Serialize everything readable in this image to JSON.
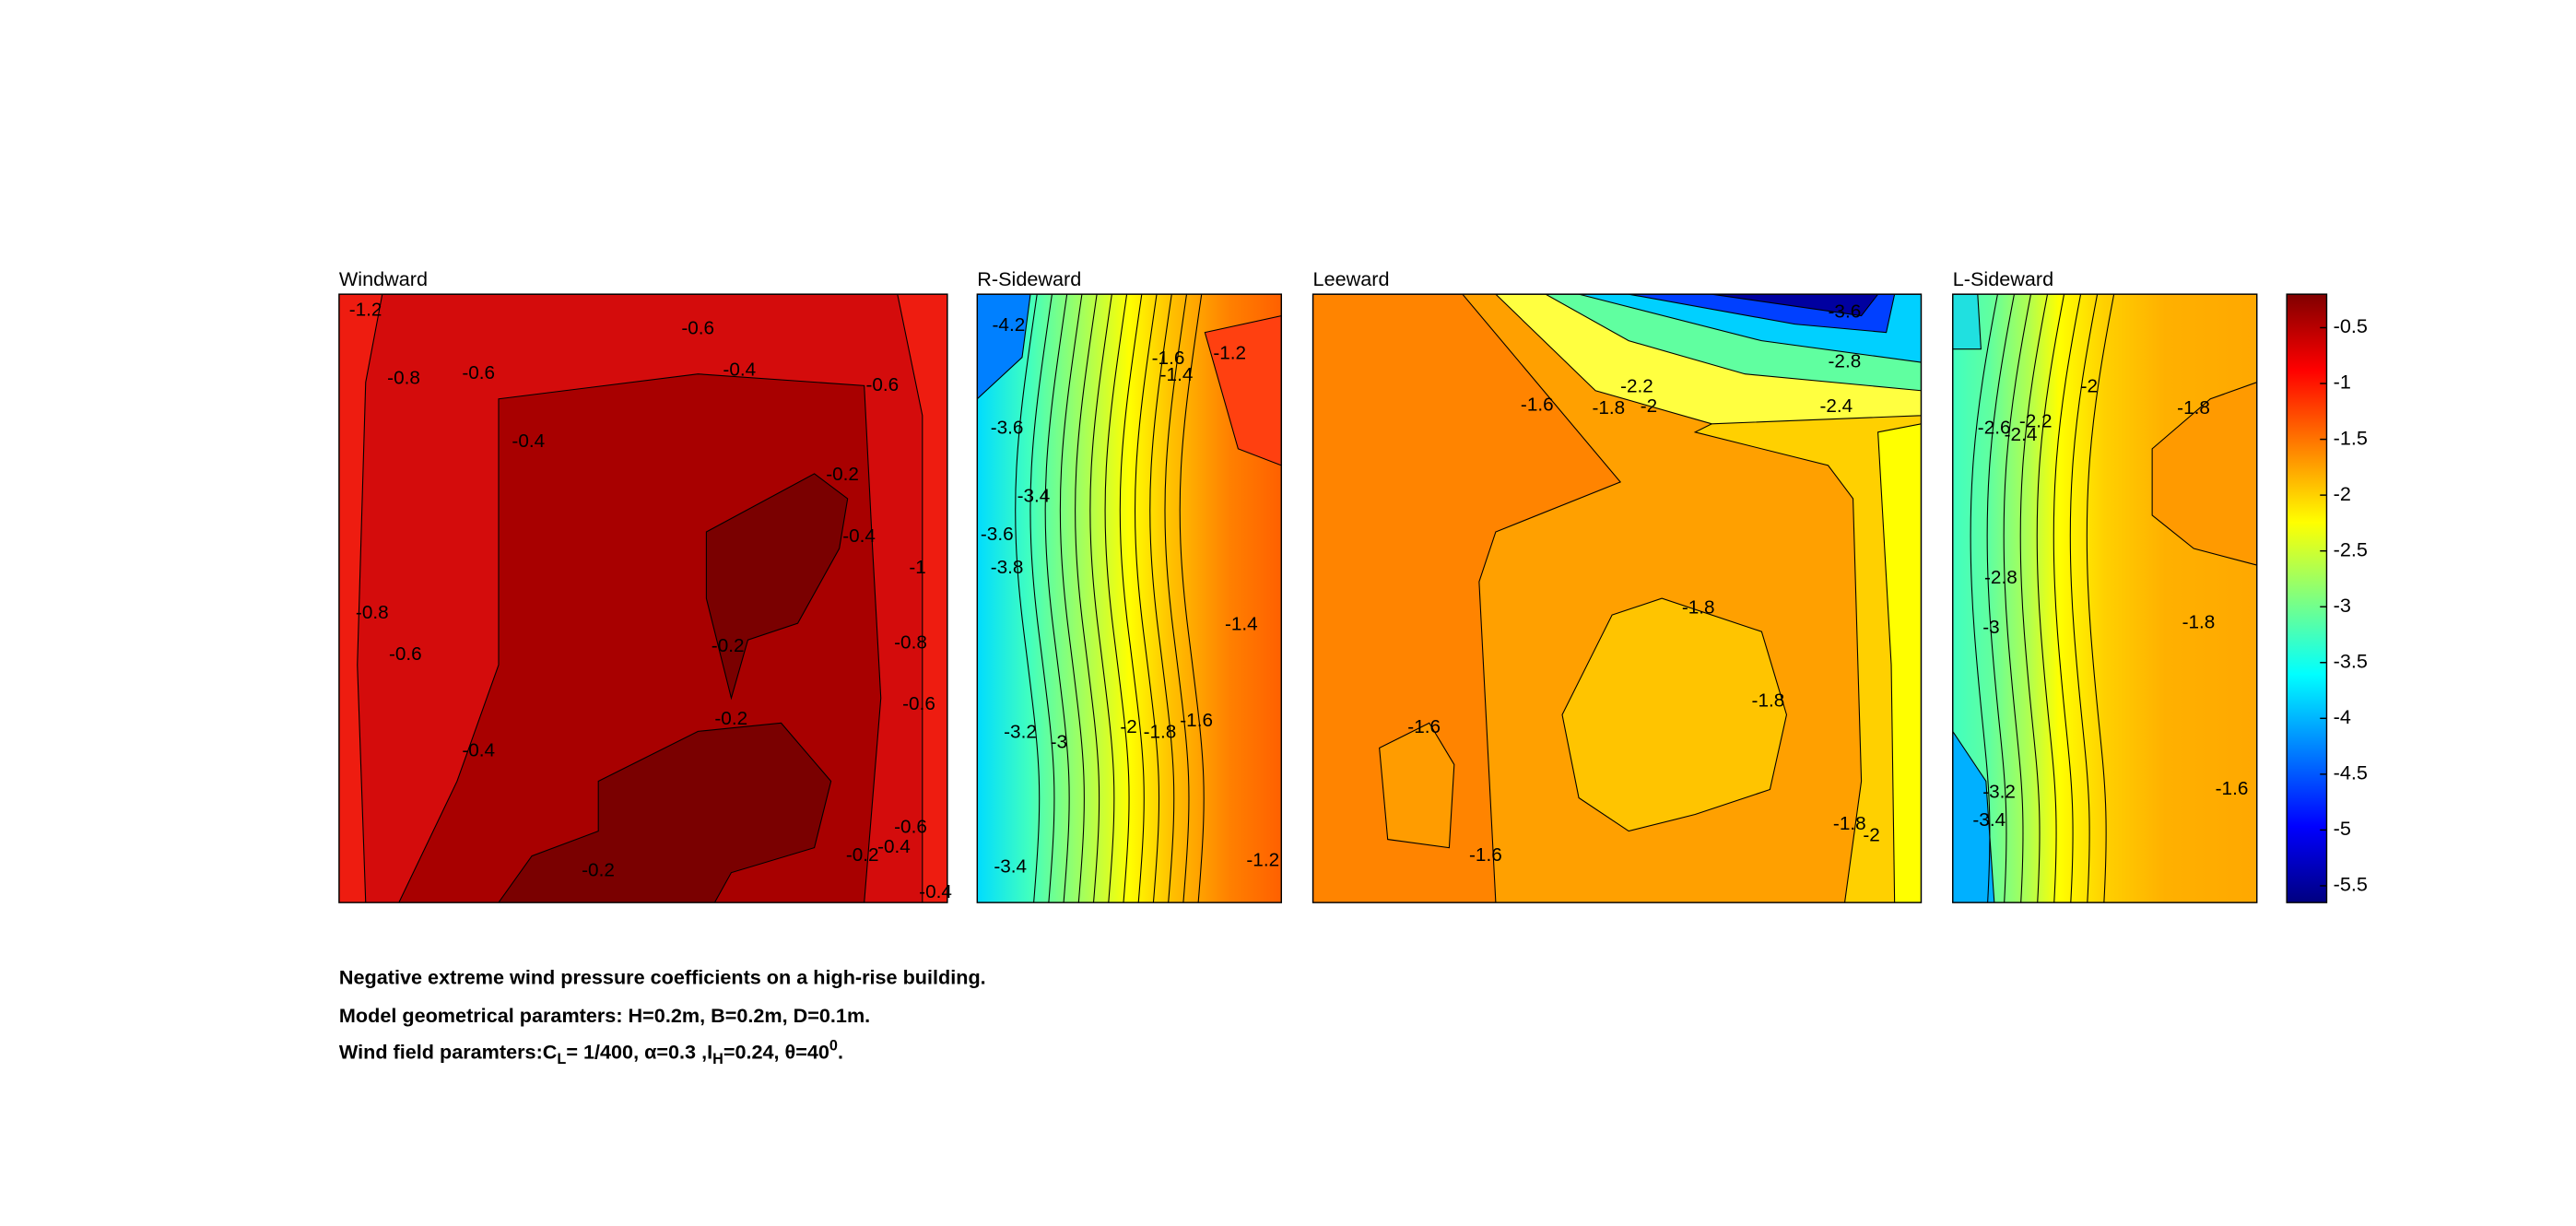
{
  "chart_data": {
    "type": "contour",
    "panels": [
      {
        "title": "Windward",
        "contour_labels": [
          -1.2,
          -0.6,
          -0.8,
          -0.6,
          -0.4,
          -0.6,
          -0.4,
          -0.2,
          -0.4,
          -1,
          -0.8,
          -0.6,
          -0.2,
          -0.8,
          -0.2,
          -0.6,
          -0.4,
          -0.6,
          -0.2,
          -0.4,
          -0.2,
          -0.4
        ]
      },
      {
        "title": "R-Sideward",
        "contour_labels": [
          -4.2,
          -1.2,
          -1.6,
          -1.4,
          -3.6,
          -3.4,
          -3.6,
          -3.8,
          -1.4,
          -3.2,
          -1.6,
          -2,
          -1.8,
          -3,
          -3.4,
          -1.2
        ]
      },
      {
        "title": "Leeward",
        "contour_labels": [
          -1.6,
          -2.2,
          -1.8,
          -2,
          -1.8,
          -1.8,
          -1.6,
          -1.6,
          -1.8,
          -2,
          -2.4,
          -2.8,
          -3.6
        ]
      },
      {
        "title": "L-Sideward",
        "contour_labels": [
          -2.6,
          -2.4,
          -2.2,
          -2,
          -1.8,
          -2.8,
          -3,
          -1.8,
          -3.2,
          -3.4,
          -1.6
        ]
      }
    ],
    "colorbar": {
      "ylim": [
        -5.65,
        -0.2
      ],
      "yticks": [
        -0.5,
        -1,
        -1.5,
        -2,
        -2.5,
        -3,
        -3.5,
        -4,
        -4.5,
        -5,
        -5.5
      ]
    },
    "caption": [
      "Negative extreme wind pressure coefficients on a high-rise building.",
      "Model geometrical paramters: H=0.2m, B=0.2m, D=0.1m."
    ],
    "caption_parts": [
      "Wind field paramters:C",
      "L",
      "= 1/400, α=0.3 ,I",
      "H",
      "=0.24, θ=40",
      "0",
      "."
    ]
  }
}
